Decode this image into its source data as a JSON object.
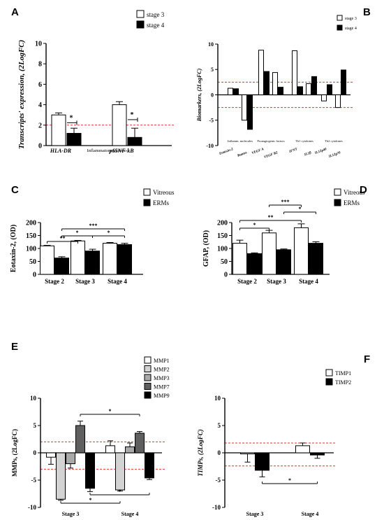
{
  "chart_data": [
    {
      "panel": "A",
      "type": "bar",
      "ylabel": "Transcripts' expression, (2LogFC)",
      "xlabel": "Inflammatory factors",
      "categories": [
        "HLA-DR",
        "p65NF-kB"
      ],
      "series": [
        {
          "name": "stage 3",
          "values": [
            3.0,
            4.0
          ],
          "errors": [
            0.2,
            0.3
          ],
          "color": "#ffffff"
        },
        {
          "name": "stage 4",
          "values": [
            1.2,
            0.8
          ],
          "errors": [
            0.5,
            0.9
          ],
          "color": "#000000"
        }
      ],
      "ylim": [
        0,
        10
      ],
      "yticks": [
        0,
        2,
        4,
        6,
        8,
        10
      ],
      "threshold_lines": [
        2
      ],
      "significance": [
        {
          "category": 0,
          "label": "*"
        },
        {
          "category": 1,
          "label": "*"
        }
      ],
      "legend": "top-right"
    },
    {
      "panel": "B",
      "type": "bar",
      "ylabel": "Biomarkers, (2LogFC)",
      "categories": [
        "Eotaxin-2",
        "Rantes",
        "VEGF A",
        "VEGF R2",
        "IFNT",
        "IL1β",
        "IL12p40",
        "IL12p70"
      ],
      "group_labels": [
        "Inflamm. molecules",
        "Proangiogenic factors",
        "Th1 cytokines",
        "Th2 cytokines"
      ],
      "series": [
        {
          "name": "stage 3",
          "values": [
            1.3,
            -5.0,
            8.8,
            4.4,
            8.7,
            2.2,
            -1.2,
            -2.5
          ],
          "color": "#ffffff"
        },
        {
          "name": "stage 4",
          "values": [
            1.2,
            -6.8,
            4.6,
            1.5,
            1.6,
            3.6,
            2.0,
            4.9
          ],
          "color": "#000000"
        }
      ],
      "ylim": [
        -10,
        10
      ],
      "yticks": [
        -10,
        -5,
        0,
        5,
        10
      ],
      "threshold_lines": [
        2.5,
        -2.5
      ],
      "legend": "top-right"
    },
    {
      "panel": "C",
      "type": "bar",
      "ylabel": "Eotaxin-2, (OD)",
      "categories": [
        "Stage 2",
        "Stage 3",
        "Stage 4"
      ],
      "series": [
        {
          "name": "Vitreous",
          "values": [
            110,
            129,
            120
          ],
          "errors": [
            2,
            2,
            3
          ],
          "color": "#ffffff"
        },
        {
          "name": "ERMs",
          "values": [
            63,
            90,
            115
          ],
          "errors": [
            5,
            7,
            5
          ],
          "color": "#000000"
        }
      ],
      "ylim": [
        0,
        200
      ],
      "yticks": [
        0,
        50,
        100,
        150,
        200
      ],
      "significance_brackets": [
        {
          "from": [
            0,
            0
          ],
          "to": [
            1,
            0
          ],
          "label": "**"
        },
        {
          "from": [
            0,
            1
          ],
          "to": [
            1,
            1
          ],
          "label": "*"
        },
        {
          "from": [
            0,
            1
          ],
          "to": [
            2,
            1
          ],
          "label": "***"
        },
        {
          "from": [
            1,
            1
          ],
          "to": [
            2,
            1
          ],
          "label": "*"
        }
      ],
      "legend": "top-right"
    },
    {
      "panel": "D",
      "type": "bar",
      "ylabel": "GFAP, (OD)",
      "categories": [
        "Stage 2",
        "Stage 3",
        "Stage 4"
      ],
      "series": [
        {
          "name": "Vitreous",
          "values": [
            120,
            160,
            180
          ],
          "errors": [
            12,
            10,
            15
          ],
          "color": "#ffffff"
        },
        {
          "name": "ERMs",
          "values": [
            80,
            95,
            120
          ],
          "errors": [
            3,
            3,
            6
          ],
          "color": "#000000"
        }
      ],
      "ylim": [
        0,
        200
      ],
      "yticks": [
        0,
        50,
        100,
        150,
        200
      ],
      "significance_brackets": [
        {
          "from": [
            0,
            0
          ],
          "to": [
            1,
            0
          ],
          "label": "*"
        },
        {
          "from": [
            0,
            0
          ],
          "to": [
            2,
            0
          ],
          "label": "**"
        },
        {
          "from": [
            1,
            1
          ],
          "to": [
            2,
            1
          ],
          "label": "*"
        },
        {
          "from": [
            1,
            0
          ],
          "to": [
            2,
            0
          ],
          "label": "***"
        }
      ],
      "legend": "top-right"
    },
    {
      "panel": "E",
      "type": "bar",
      "ylabel": "MMPs, (2LogFC)",
      "categories": [
        "Stage 3",
        "Stage 4"
      ],
      "series": [
        {
          "name": "MMP1",
          "values": [
            -0.8,
            1.3
          ],
          "errors": [
            1.3,
            0.9
          ],
          "color": "#ffffff"
        },
        {
          "name": "MMP2",
          "values": [
            -8.5,
            -6.8
          ],
          "errors": [
            0.2,
            0.2
          ],
          "color": "#d3d3d3"
        },
        {
          "name": "MMP3",
          "values": [
            -2.0,
            1.1
          ],
          "errors": [
            0.8,
            0.7
          ],
          "color": "#a9a9a9"
        },
        {
          "name": "MMP7",
          "values": [
            5.0,
            3.6
          ],
          "errors": [
            0.8,
            0.3
          ],
          "color": "#5f5f5f"
        },
        {
          "name": "MMP9",
          "values": [
            -6.5,
            -4.6
          ],
          "errors": [
            0.6,
            0.3
          ],
          "color": "#000000"
        }
      ],
      "ylim": [
        -10,
        10
      ],
      "yticks": [
        -10,
        -5,
        0,
        5,
        10
      ],
      "threshold_lines": [
        2,
        -3
      ],
      "significance_brackets": [
        {
          "from": [
            0,
            3
          ],
          "to": [
            1,
            3
          ],
          "label": "*"
        },
        {
          "from": [
            0,
            4
          ],
          "to": [
            1,
            4
          ],
          "label": "*"
        },
        {
          "from": [
            0,
            1
          ],
          "to": [
            1,
            1
          ],
          "label": "*"
        }
      ],
      "legend": "top-right"
    },
    {
      "panel": "F",
      "type": "bar",
      "ylabel": "TIMPs, (2LogFC)",
      "categories": [
        "Stage 3",
        "Stage 4"
      ],
      "series": [
        {
          "name": "TIMP1",
          "values": [
            -0.2,
            1.3
          ],
          "errors": [
            1.5,
            0.5
          ],
          "color": "#ffffff"
        },
        {
          "name": "TIMP2",
          "values": [
            -3.2,
            -0.4
          ],
          "errors": [
            1.2,
            0.6
          ],
          "color": "#000000"
        }
      ],
      "ylim": [
        -10,
        10
      ],
      "yticks": [
        -10,
        -5,
        0,
        5,
        10
      ],
      "threshold_lines": [
        1.8,
        -2.4
      ],
      "significance_brackets": [
        {
          "from": [
            0,
            1
          ],
          "to": [
            1,
            1
          ],
          "label": "*"
        }
      ],
      "legend": "top-right"
    }
  ]
}
